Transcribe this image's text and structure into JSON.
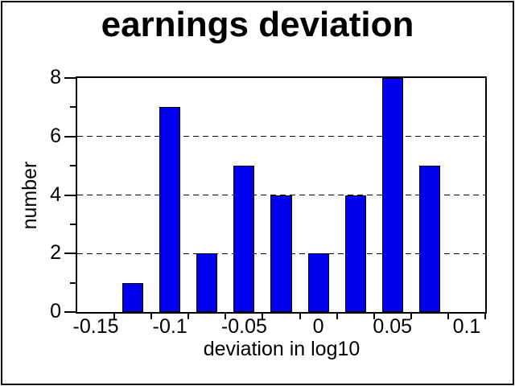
{
  "frame": {
    "background": "#ffffff",
    "border_color": "#000000"
  },
  "chart_data": {
    "type": "bar",
    "title": "earnings deviation",
    "xlabel": "deviation in log10",
    "ylabel": "number",
    "x": [
      -0.125,
      -0.1,
      -0.075,
      -0.05,
      -0.025,
      0,
      0.025,
      0.05,
      0.075
    ],
    "values": [
      1,
      7,
      2,
      5,
      4,
      2,
      4,
      8,
      5
    ],
    "bin_width": 0.025,
    "bar_color": "#0000ee",
    "bar_edge_color": "#000000",
    "xlim": [
      -0.1625,
      0.1125
    ],
    "ylim": [
      0,
      8
    ],
    "x_major_labels": [
      {
        "value": -0.15,
        "label": "-0.15"
      },
      {
        "value": -0.1,
        "label": "-0.1"
      },
      {
        "value": -0.05,
        "label": "-0.05"
      },
      {
        "value": 0,
        "label": "0"
      },
      {
        "value": 0.05,
        "label": "0.05"
      },
      {
        "value": 0.1,
        "label": "0.1"
      }
    ],
    "x_ticks": [
      -0.1375,
      -0.1125,
      -0.0875,
      -0.0625,
      -0.0375,
      -0.0125,
      0.0125,
      0.0375,
      0.0625,
      0.0875,
      0.1125
    ],
    "y_major_ticks": [
      0,
      2,
      4,
      6,
      8
    ],
    "y_minor_ticks": [
      1,
      3,
      5,
      7
    ],
    "gridlines_y": [
      2,
      4,
      6
    ],
    "grid_style": "dashed",
    "legend_position": "none"
  }
}
